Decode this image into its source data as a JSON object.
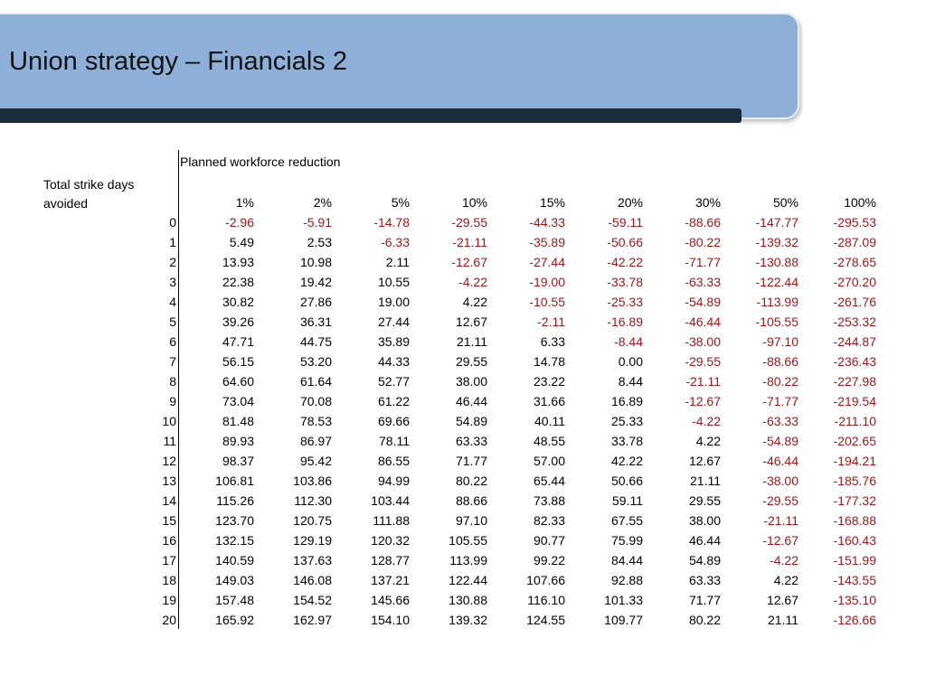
{
  "title": "Union strategy – Financials 2",
  "table": {
    "row_axis_label": "Total strike days avoided",
    "col_axis_label": "Planned workforce reduction",
    "columns": [
      "1%",
      "2%",
      "5%",
      "10%",
      "15%",
      "20%",
      "30%",
      "50%",
      "100%"
    ],
    "colors": {
      "negative": "#a01818",
      "positive": "#000000"
    },
    "rows": [
      {
        "label": "0",
        "values": [
          "-2.96",
          "-5.91",
          "-14.78",
          "-29.55",
          "-44.33",
          "-59.11",
          "-88.66",
          "-147.77",
          "-295.53"
        ]
      },
      {
        "label": "1",
        "values": [
          "5.49",
          "2.53",
          "-6.33",
          "-21.11",
          "-35.89",
          "-50.66",
          "-80.22",
          "-139.32",
          "-287.09"
        ]
      },
      {
        "label": "2",
        "values": [
          "13.93",
          "10.98",
          "2.11",
          "-12.67",
          "-27.44",
          "-42.22",
          "-71.77",
          "-130.88",
          "-278.65"
        ]
      },
      {
        "label": "3",
        "values": [
          "22.38",
          "19.42",
          "10.55",
          "-4.22",
          "-19.00",
          "-33.78",
          "-63.33",
          "-122.44",
          "-270.20"
        ]
      },
      {
        "label": "4",
        "values": [
          "30.82",
          "27.86",
          "19.00",
          "4.22",
          "-10.55",
          "-25.33",
          "-54.89",
          "-113.99",
          "-261.76"
        ]
      },
      {
        "label": "5",
        "values": [
          "39.26",
          "36.31",
          "27.44",
          "12.67",
          "-2.11",
          "-16.89",
          "-46.44",
          "-105.55",
          "-253.32"
        ]
      },
      {
        "label": "6",
        "values": [
          "47.71",
          "44.75",
          "35.89",
          "21.11",
          "6.33",
          "-8.44",
          "-38.00",
          "-97.10",
          "-244.87"
        ]
      },
      {
        "label": "7",
        "values": [
          "56.15",
          "53.20",
          "44.33",
          "29.55",
          "14.78",
          "0.00",
          "-29.55",
          "-88.66",
          "-236.43"
        ]
      },
      {
        "label": "8",
        "values": [
          "64.60",
          "61.64",
          "52.77",
          "38.00",
          "23.22",
          "8.44",
          "-21.11",
          "-80.22",
          "-227.98"
        ]
      },
      {
        "label": "9",
        "values": [
          "73.04",
          "70.08",
          "61.22",
          "46.44",
          "31.66",
          "16.89",
          "-12.67",
          "-71.77",
          "-219.54"
        ]
      },
      {
        "label": "10",
        "values": [
          "81.48",
          "78.53",
          "69.66",
          "54.89",
          "40.11",
          "25.33",
          "-4.22",
          "-63.33",
          "-211.10"
        ]
      },
      {
        "label": "11",
        "values": [
          "89.93",
          "86.97",
          "78.11",
          "63.33",
          "48.55",
          "33.78",
          "4.22",
          "-54.89",
          "-202.65"
        ]
      },
      {
        "label": "12",
        "values": [
          "98.37",
          "95.42",
          "86.55",
          "71.77",
          "57.00",
          "42.22",
          "12.67",
          "-46.44",
          "-194.21"
        ]
      },
      {
        "label": "13",
        "values": [
          "106.81",
          "103.86",
          "94.99",
          "80.22",
          "65.44",
          "50.66",
          "21.11",
          "-38.00",
          "-185.76"
        ]
      },
      {
        "label": "14",
        "values": [
          "115.26",
          "112.30",
          "103.44",
          "88.66",
          "73.88",
          "59.11",
          "29.55",
          "-29.55",
          "-177.32"
        ]
      },
      {
        "label": "15",
        "values": [
          "123.70",
          "120.75",
          "111.88",
          "97.10",
          "82.33",
          "67.55",
          "38.00",
          "-21.11",
          "-168.88"
        ]
      },
      {
        "label": "16",
        "values": [
          "132.15",
          "129.19",
          "120.32",
          "105.55",
          "90.77",
          "75.99",
          "46.44",
          "-12.67",
          "-160.43"
        ]
      },
      {
        "label": "17",
        "values": [
          "140.59",
          "137.63",
          "128.77",
          "113.99",
          "99.22",
          "84.44",
          "54.89",
          "-4.22",
          "-151.99"
        ]
      },
      {
        "label": "18",
        "values": [
          "149.03",
          "146.08",
          "137.21",
          "122.44",
          "107.66",
          "92.88",
          "63.33",
          "4.22",
          "-143.55"
        ]
      },
      {
        "label": "19",
        "values": [
          "157.48",
          "154.52",
          "145.66",
          "130.88",
          "116.10",
          "101.33",
          "71.77",
          "12.67",
          "-135.10"
        ]
      },
      {
        "label": "20",
        "values": [
          "165.92",
          "162.97",
          "154.10",
          "139.32",
          "124.55",
          "109.77",
          "80.22",
          "21.11",
          "-126.66"
        ]
      }
    ]
  }
}
